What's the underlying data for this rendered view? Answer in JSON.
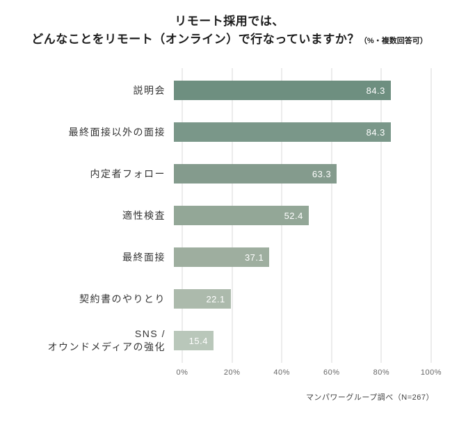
{
  "title": {
    "line1": "リモート採用では、",
    "line2_main": "どんなことをリモート（オンライン）で行なっていますか？",
    "line2_note": "（%・複数回答可）"
  },
  "footer": {
    "source": "マンパワーグループ調べ（N=267）"
  },
  "colors": {
    "grid": "#d9d9d9",
    "value_text": "#ffffff",
    "tick_text": "#666666"
  },
  "chart_data": {
    "type": "bar",
    "orientation": "horizontal",
    "title": "リモート採用では、どんなことをリモート（オンライン）で行なっていますか？（%・複数回答可）",
    "categories": [
      "説明会",
      "最終面接以外の面接",
      "内定者フォロー",
      "適性検査",
      "最終面接",
      "契約書のやりとり",
      "SNS /\nオウンドメディアの強化"
    ],
    "values": [
      84.3,
      84.3,
      63.3,
      52.4,
      37.1,
      22.1,
      15.4
    ],
    "bar_colors": [
      "#6e8f80",
      "#7a9789",
      "#849b8d",
      "#93a797",
      "#9eae9f",
      "#acbaac",
      "#b9c7ba"
    ],
    "xlim": [
      0,
      100
    ],
    "x_ticks": [
      0,
      20,
      40,
      60,
      80,
      100
    ],
    "x_tick_labels": [
      "0%",
      "20%",
      "40%",
      "60%",
      "80%",
      "100%"
    ],
    "grid": true,
    "legend": false,
    "value_label_position": "inside-end",
    "source_note": "マンパワーグループ調べ（N=267）"
  }
}
